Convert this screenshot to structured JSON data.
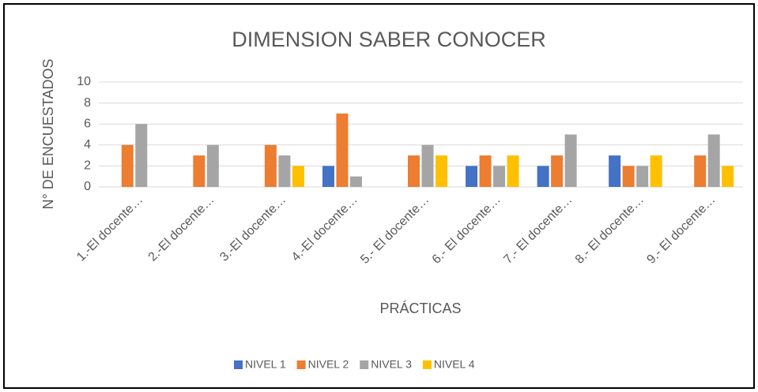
{
  "chart_data": {
    "type": "bar",
    "title": "DIMENSION SABER CONOCER",
    "x_label": "PRÁCTICAS",
    "y_label": "N° DE ENCUESTADOS",
    "categories": [
      "1.-El docente…",
      "2.-El docente…",
      "3.-El docente…",
      "4.-El docente…",
      "5.- El docente…",
      "6.- El docente…",
      "7.- El docente…",
      "8.- El docente…",
      "9.- El docente…"
    ],
    "series": [
      {
        "name": "NIVEL 1",
        "color": "#4472c4",
        "values": [
          0,
          0,
          0,
          2,
          0,
          2,
          2,
          3,
          0
        ]
      },
      {
        "name": "NIVEL 2",
        "color": "#ed7d31",
        "values": [
          4,
          3,
          4,
          7,
          3,
          3,
          3,
          2,
          3
        ]
      },
      {
        "name": "NIVEL 3",
        "color": "#a5a5a5",
        "values": [
          6,
          4,
          3,
          1,
          4,
          2,
          5,
          2,
          5
        ]
      },
      {
        "name": "NIVEL 4",
        "color": "#ffc000",
        "values": [
          0,
          0,
          2,
          0,
          3,
          3,
          0,
          3,
          2
        ]
      }
    ],
    "ylim": [
      0,
      10
    ],
    "yticks": [
      0,
      2,
      4,
      6,
      8,
      10
    ],
    "grid": true,
    "legend": "bottom"
  }
}
